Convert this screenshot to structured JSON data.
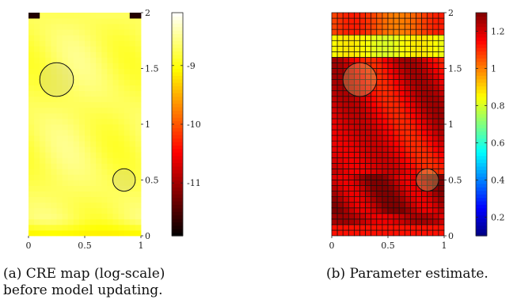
{
  "chart_data": [
    {
      "type": "heatmap",
      "panel_label": "(a)",
      "caption_line1": "(a) CRE map (log-scale)",
      "caption_line2": "before model updating.",
      "colormap": "hot",
      "xlim": [
        0,
        1
      ],
      "ylim": [
        0,
        2
      ],
      "x_ticks": [
        "0",
        "0.5",
        "1"
      ],
      "y_ticks": [
        "0",
        "0.5",
        "1",
        "1.5",
        "2"
      ],
      "colorbar_ticks": [
        "-9",
        "-10",
        "-11"
      ],
      "colorbar_tick_values": [
        -9,
        -10,
        -11
      ],
      "colorbar_range": [
        -11.9,
        -8.1
      ],
      "grid": false,
      "grid_cols": 20,
      "grid_rows": 40,
      "circles": [
        {
          "center_x": 0.25,
          "center_y": 1.4,
          "radius": 0.15
        },
        {
          "center_x": 0.85,
          "center_y": 0.5,
          "radius": 0.1
        }
      ]
    },
    {
      "type": "heatmap",
      "panel_label": "(b)",
      "caption_line1": "(b) Parameter estimate.",
      "colormap": "jet",
      "xlim": [
        0,
        1
      ],
      "ylim": [
        0,
        2
      ],
      "x_ticks": [
        "0",
        "0.5",
        "1"
      ],
      "y_ticks": [
        "0",
        "0.5",
        "1",
        "1.5",
        "2"
      ],
      "colorbar_ticks": [
        "1.2",
        "1",
        "0.8",
        "0.6",
        "0.4",
        "0.2"
      ],
      "colorbar_tick_values": [
        1.2,
        1.0,
        0.8,
        0.6,
        0.4,
        0.2
      ],
      "colorbar_range": [
        0.1,
        1.3
      ],
      "grid": true,
      "grid_cols": 20,
      "grid_rows": 40,
      "circles": [
        {
          "center_x": 0.25,
          "center_y": 1.4,
          "radius": 0.15
        },
        {
          "center_x": 0.85,
          "center_y": 0.5,
          "radius": 0.1
        }
      ]
    }
  ]
}
